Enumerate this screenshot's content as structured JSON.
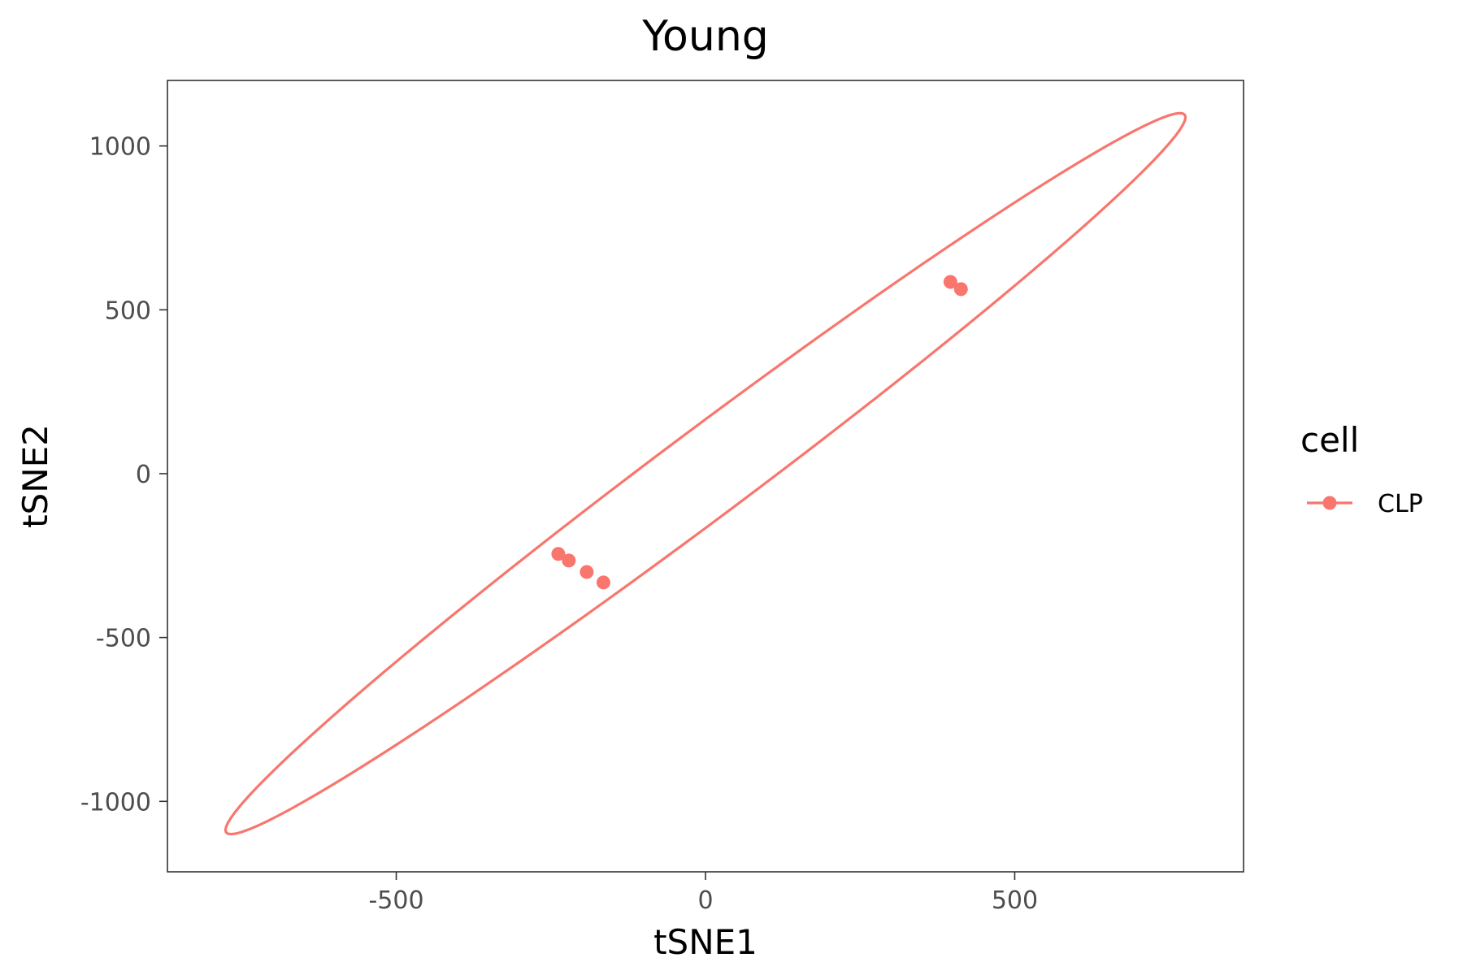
{
  "chart_data": {
    "type": "scatter",
    "title": "Young",
    "xlabel": "tSNE1",
    "ylabel": "tSNE2",
    "xlim": [
      -870,
      870
    ],
    "ylim": [
      -1215,
      1200
    ],
    "x_ticks": [
      {
        "value": -500,
        "label": "-500"
      },
      {
        "value": 0,
        "label": "0"
      },
      {
        "value": 500,
        "label": "500"
      }
    ],
    "y_ticks": [
      {
        "value": 1000,
        "label": "1000"
      },
      {
        "value": 500,
        "label": "500"
      },
      {
        "value": 0,
        "label": "0"
      },
      {
        "value": -500,
        "label": "-500"
      },
      {
        "value": -1000,
        "label": "-1000"
      }
    ],
    "grid": false,
    "legend": {
      "title": "cell",
      "position": "right",
      "entries": [
        {
          "label": "CLP",
          "color": "#F8766D"
        }
      ]
    },
    "series": [
      {
        "name": "CLP",
        "color": "#F8766D",
        "points": [
          {
            "x": -238,
            "y": -245
          },
          {
            "x": -221,
            "y": -265
          },
          {
            "x": -192,
            "y": -300
          },
          {
            "x": -165,
            "y": -332
          },
          {
            "x": 396,
            "y": 585
          },
          {
            "x": 413,
            "y": 563
          }
        ],
        "ellipse": {
          "center": [
            0,
            0
          ],
          "vertex_upper": [
            775,
            1090
          ],
          "vertex_lower": [
            -775,
            -1100
          ],
          "semi_minor": 96
        }
      }
    ]
  }
}
